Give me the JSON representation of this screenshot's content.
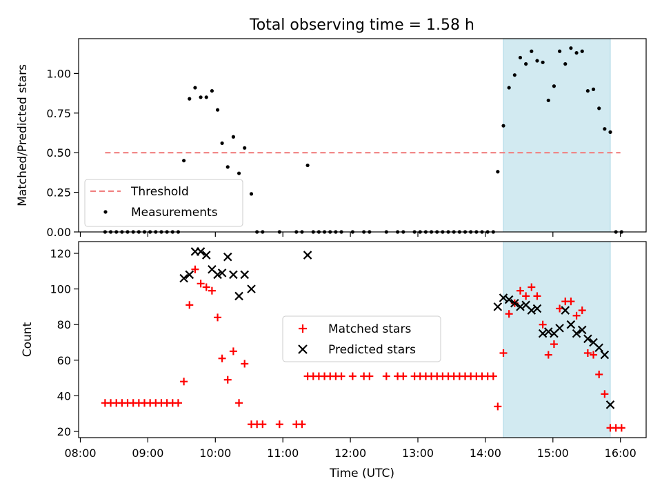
{
  "chart_data": [
    {
      "type": "scatter",
      "title": "Total observing time = 1.58 h",
      "ylabel": "Matched/Predicted stars",
      "xlabel": "",
      "xlim": [
        "08:00",
        "16:00"
      ],
      "ylim": [
        0,
        1.2
      ],
      "yticks": [
        "0.00",
        "0.25",
        "0.50",
        "0.75",
        "1.00"
      ],
      "shaded_interval": {
        "from": "14:16",
        "to": "15:51",
        "color": "#add8e6"
      },
      "threshold": {
        "name": "Threshold",
        "value": 0.5,
        "from": "08:22",
        "to": "16:00",
        "color": "#f08080"
      },
      "series": [
        {
          "name": "Measurements",
          "marker": "dot",
          "color": "#000000",
          "points": [
            [
              "08:22",
              0
            ],
            [
              "08:27",
              0
            ],
            [
              "08:32",
              0
            ],
            [
              "08:37",
              0
            ],
            [
              "08:42",
              0
            ],
            [
              "08:47",
              0
            ],
            [
              "08:52",
              0
            ],
            [
              "08:57",
              0
            ],
            [
              "09:02",
              0
            ],
            [
              "09:07",
              0
            ],
            [
              "09:12",
              0
            ],
            [
              "09:17",
              0
            ],
            [
              "09:22",
              0
            ],
            [
              "09:27",
              0
            ],
            [
              "09:32",
              0.45
            ],
            [
              "09:37",
              0.84
            ],
            [
              "09:42",
              0.91
            ],
            [
              "09:47",
              0.85
            ],
            [
              "09:52",
              0.85
            ],
            [
              "09:57",
              0.89
            ],
            [
              "10:02",
              0.77
            ],
            [
              "10:06",
              0.56
            ],
            [
              "10:11",
              0.41
            ],
            [
              "10:16",
              0.6
            ],
            [
              "10:21",
              0.37
            ],
            [
              "10:26",
              0.53
            ],
            [
              "10:32",
              0.24
            ],
            [
              "10:37",
              0
            ],
            [
              "10:42",
              0
            ],
            [
              "10:57",
              0
            ],
            [
              "11:12",
              0
            ],
            [
              "11:17",
              0
            ],
            [
              "11:22",
              0.42
            ],
            [
              "11:27",
              0
            ],
            [
              "11:32",
              0
            ],
            [
              "11:37",
              0
            ],
            [
              "11:42",
              0
            ],
            [
              "11:47",
              0
            ],
            [
              "11:52",
              0
            ],
            [
              "12:02",
              0
            ],
            [
              "12:12",
              0
            ],
            [
              "12:17",
              0
            ],
            [
              "12:32",
              0
            ],
            [
              "12:42",
              0
            ],
            [
              "12:47",
              0
            ],
            [
              "12:57",
              0
            ],
            [
              "13:02",
              0
            ],
            [
              "13:07",
              0
            ],
            [
              "13:12",
              0
            ],
            [
              "13:17",
              0
            ],
            [
              "13:22",
              0
            ],
            [
              "13:27",
              0
            ],
            [
              "13:32",
              0
            ],
            [
              "13:37",
              0
            ],
            [
              "13:42",
              0
            ],
            [
              "13:47",
              0
            ],
            [
              "13:52",
              0
            ],
            [
              "13:57",
              0
            ],
            [
              "14:02",
              0
            ],
            [
              "14:07",
              0
            ],
            [
              "14:11",
              0.38
            ],
            [
              "14:16",
              0.67
            ],
            [
              "14:21",
              0.91
            ],
            [
              "14:26",
              0.99
            ],
            [
              "14:31",
              1.1
            ],
            [
              "14:36",
              1.06
            ],
            [
              "14:41",
              1.14
            ],
            [
              "14:46",
              1.08
            ],
            [
              "14:51",
              1.07
            ],
            [
              "14:56",
              0.83
            ],
            [
              "15:01",
              0.92
            ],
            [
              "15:06",
              1.14
            ],
            [
              "15:11",
              1.06
            ],
            [
              "15:16",
              1.16
            ],
            [
              "15:21",
              1.13
            ],
            [
              "15:26",
              1.14
            ],
            [
              "15:31",
              0.89
            ],
            [
              "15:36",
              0.9
            ],
            [
              "15:41",
              0.78
            ],
            [
              "15:46",
              0.65
            ],
            [
              "15:51",
              0.63
            ],
            [
              "15:56",
              0
            ],
            [
              "16:01",
              0
            ]
          ]
        }
      ],
      "legend": {
        "placement": "lower-left",
        "entries": [
          "Threshold",
          "Measurements"
        ]
      }
    },
    {
      "type": "scatter",
      "title": "",
      "xlabel": "Time (UTC)",
      "ylabel": "Count",
      "xlim": [
        "08:00",
        "16:00"
      ],
      "ylim": [
        20,
        120
      ],
      "xticks": [
        "08:00",
        "09:00",
        "10:00",
        "11:00",
        "12:00",
        "13:00",
        "14:00",
        "15:00",
        "16:00"
      ],
      "yticks": [
        "20",
        "40",
        "60",
        "80",
        "100",
        "120"
      ],
      "shaded_interval": {
        "from": "14:16",
        "to": "15:51",
        "color": "#add8e6"
      },
      "series": [
        {
          "name": "Matched stars",
          "marker": "plus",
          "color": "#ff0000",
          "points": [
            [
              "08:22",
              36
            ],
            [
              "08:27",
              36
            ],
            [
              "08:32",
              36
            ],
            [
              "08:37",
              36
            ],
            [
              "08:42",
              36
            ],
            [
              "08:47",
              36
            ],
            [
              "08:52",
              36
            ],
            [
              "08:57",
              36
            ],
            [
              "09:02",
              36
            ],
            [
              "09:07",
              36
            ],
            [
              "09:12",
              36
            ],
            [
              "09:17",
              36
            ],
            [
              "09:22",
              36
            ],
            [
              "09:27",
              36
            ],
            [
              "09:32",
              48
            ],
            [
              "09:37",
              91
            ],
            [
              "09:42",
              111
            ],
            [
              "09:47",
              103
            ],
            [
              "09:52",
              101
            ],
            [
              "09:57",
              99
            ],
            [
              "10:02",
              84
            ],
            [
              "10:06",
              61
            ],
            [
              "10:11",
              49
            ],
            [
              "10:16",
              65
            ],
            [
              "10:21",
              36
            ],
            [
              "10:26",
              58
            ],
            [
              "10:32",
              24
            ],
            [
              "10:37",
              24
            ],
            [
              "10:42",
              24
            ],
            [
              "10:57",
              24
            ],
            [
              "11:12",
              24
            ],
            [
              "11:17",
              24
            ],
            [
              "11:22",
              51
            ],
            [
              "11:27",
              51
            ],
            [
              "11:32",
              51
            ],
            [
              "11:37",
              51
            ],
            [
              "11:42",
              51
            ],
            [
              "11:47",
              51
            ],
            [
              "11:52",
              51
            ],
            [
              "12:02",
              51
            ],
            [
              "12:12",
              51
            ],
            [
              "12:17",
              51
            ],
            [
              "12:32",
              51
            ],
            [
              "12:42",
              51
            ],
            [
              "12:47",
              51
            ],
            [
              "12:57",
              51
            ],
            [
              "13:02",
              51
            ],
            [
              "13:07",
              51
            ],
            [
              "13:12",
              51
            ],
            [
              "13:17",
              51
            ],
            [
              "13:22",
              51
            ],
            [
              "13:27",
              51
            ],
            [
              "13:32",
              51
            ],
            [
              "13:37",
              51
            ],
            [
              "13:42",
              51
            ],
            [
              "13:47",
              51
            ],
            [
              "13:52",
              51
            ],
            [
              "13:57",
              51
            ],
            [
              "14:02",
              51
            ],
            [
              "14:07",
              51
            ],
            [
              "14:11",
              34
            ],
            [
              "14:16",
              64
            ],
            [
              "14:21",
              86
            ],
            [
              "14:26",
              92
            ],
            [
              "14:31",
              99
            ],
            [
              "14:36",
              96
            ],
            [
              "14:41",
              101
            ],
            [
              "14:46",
              96
            ],
            [
              "14:51",
              80
            ],
            [
              "14:56",
              63
            ],
            [
              "15:01",
              69
            ],
            [
              "15:06",
              89
            ],
            [
              "15:11",
              93
            ],
            [
              "15:16",
              93
            ],
            [
              "15:21",
              85
            ],
            [
              "15:26",
              88
            ],
            [
              "15:31",
              64
            ],
            [
              "15:36",
              63
            ],
            [
              "15:41",
              52
            ],
            [
              "15:46",
              41
            ],
            [
              "15:51",
              22
            ],
            [
              "15:56",
              22
            ],
            [
              "16:01",
              22
            ]
          ]
        },
        {
          "name": "Predicted stars",
          "marker": "x",
          "color": "#000000",
          "points": [
            [
              "09:32",
              106
            ],
            [
              "09:37",
              108
            ],
            [
              "09:42",
              121
            ],
            [
              "09:47",
              121
            ],
            [
              "09:52",
              119
            ],
            [
              "09:57",
              111
            ],
            [
              "10:02",
              108
            ],
            [
              "10:06",
              109
            ],
            [
              "10:11",
              118
            ],
            [
              "10:16",
              108
            ],
            [
              "10:21",
              96
            ],
            [
              "10:26",
              108
            ],
            [
              "10:32",
              100
            ],
            [
              "11:22",
              119
            ],
            [
              "14:11",
              90
            ],
            [
              "14:16",
              95
            ],
            [
              "14:21",
              94
            ],
            [
              "14:26",
              92
            ],
            [
              "14:31",
              90
            ],
            [
              "14:36",
              91
            ],
            [
              "14:41",
              88
            ],
            [
              "14:46",
              89
            ],
            [
              "14:51",
              75
            ],
            [
              "14:56",
              76
            ],
            [
              "15:01",
              75
            ],
            [
              "15:06",
              78
            ],
            [
              "15:11",
              88
            ],
            [
              "15:16",
              80
            ],
            [
              "15:21",
              75
            ],
            [
              "15:26",
              77
            ],
            [
              "15:31",
              72
            ],
            [
              "15:36",
              70
            ],
            [
              "15:41",
              67
            ],
            [
              "15:46",
              63
            ],
            [
              "15:51",
              35
            ]
          ]
        }
      ],
      "legend": {
        "placement": "center",
        "entries": [
          "Matched stars",
          "Predicted stars"
        ]
      }
    }
  ]
}
